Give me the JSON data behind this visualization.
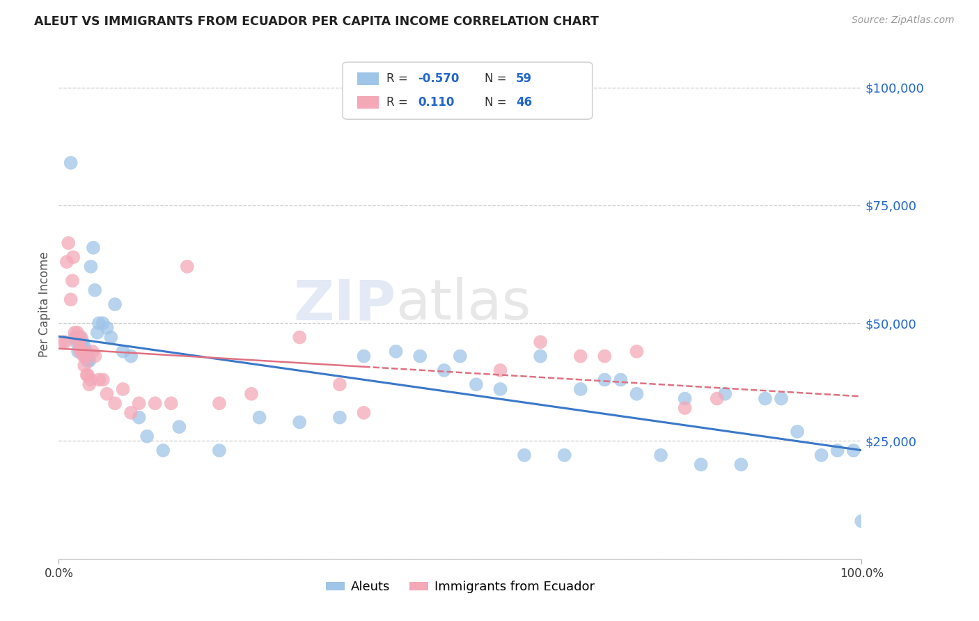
{
  "title": "ALEUT VS IMMIGRANTS FROM ECUADOR PER CAPITA INCOME CORRELATION CHART",
  "source": "Source: ZipAtlas.com",
  "ylabel": "Per Capita Income",
  "yticks": [
    0,
    25000,
    50000,
    75000,
    100000
  ],
  "ytick_labels": [
    "",
    "$25,000",
    "$50,000",
    "$75,000",
    "$100,000"
  ],
  "xmin": 0.0,
  "xmax": 100.0,
  "ymin": 0,
  "ymax": 108000,
  "color_blue": "#9fc5e8",
  "color_pink": "#f4a8b8",
  "color_blue_line": "#3a78c9",
  "color_pink_line": "#e07080",
  "legend_label1": "Aleuts",
  "legend_label2": "Immigrants from Ecuador",
  "watermark_zip": "ZIP",
  "watermark_atlas": "atlas",
  "aleuts_x": [
    1.5,
    2.0,
    2.2,
    2.4,
    2.6,
    2.8,
    3.0,
    3.1,
    3.2,
    3.3,
    3.4,
    3.6,
    3.7,
    3.8,
    4.0,
    4.3,
    4.5,
    4.8,
    5.0,
    5.5,
    6.0,
    6.5,
    7.0,
    8.0,
    9.0,
    10.0,
    11.0,
    13.0,
    15.0,
    20.0,
    25.0,
    30.0,
    35.0,
    38.0,
    42.0,
    45.0,
    48.0,
    50.0,
    52.0,
    55.0,
    58.0,
    60.0,
    63.0,
    65.0,
    68.0,
    70.0,
    72.0,
    75.0,
    78.0,
    80.0,
    83.0,
    85.0,
    88.0,
    90.0,
    92.0,
    95.0,
    97.0,
    99.0,
    100.0
  ],
  "aleuts_y": [
    84000,
    47000,
    46000,
    44000,
    47000,
    46000,
    46000,
    44000,
    45000,
    43000,
    44000,
    42000,
    43000,
    42000,
    62000,
    66000,
    57000,
    48000,
    50000,
    50000,
    49000,
    47000,
    54000,
    44000,
    43000,
    30000,
    26000,
    23000,
    28000,
    23000,
    30000,
    29000,
    30000,
    43000,
    44000,
    43000,
    40000,
    43000,
    37000,
    36000,
    22000,
    43000,
    22000,
    36000,
    38000,
    38000,
    35000,
    22000,
    34000,
    20000,
    35000,
    20000,
    34000,
    34000,
    27000,
    22000,
    23000,
    23000,
    8000
  ],
  "ecuador_x": [
    0.5,
    0.8,
    1.0,
    1.2,
    1.5,
    1.7,
    1.8,
    2.0,
    2.2,
    2.3,
    2.5,
    2.6,
    2.7,
    2.8,
    3.0,
    3.1,
    3.2,
    3.4,
    3.5,
    3.6,
    3.8,
    4.0,
    4.2,
    4.5,
    5.0,
    5.5,
    6.0,
    7.0,
    8.0,
    9.0,
    10.0,
    12.0,
    14.0,
    16.0,
    20.0,
    24.0,
    30.0,
    35.0,
    38.0,
    55.0,
    60.0,
    65.0,
    68.0,
    72.0,
    78.0,
    82.0
  ],
  "ecuador_y": [
    46000,
    46000,
    63000,
    67000,
    55000,
    59000,
    64000,
    48000,
    47000,
    48000,
    46000,
    45000,
    44000,
    47000,
    44000,
    43000,
    41000,
    43000,
    39000,
    39000,
    37000,
    38000,
    44000,
    43000,
    38000,
    38000,
    35000,
    33000,
    36000,
    31000,
    33000,
    33000,
    33000,
    62000,
    33000,
    35000,
    47000,
    37000,
    31000,
    40000,
    46000,
    43000,
    43000,
    44000,
    32000,
    34000
  ]
}
